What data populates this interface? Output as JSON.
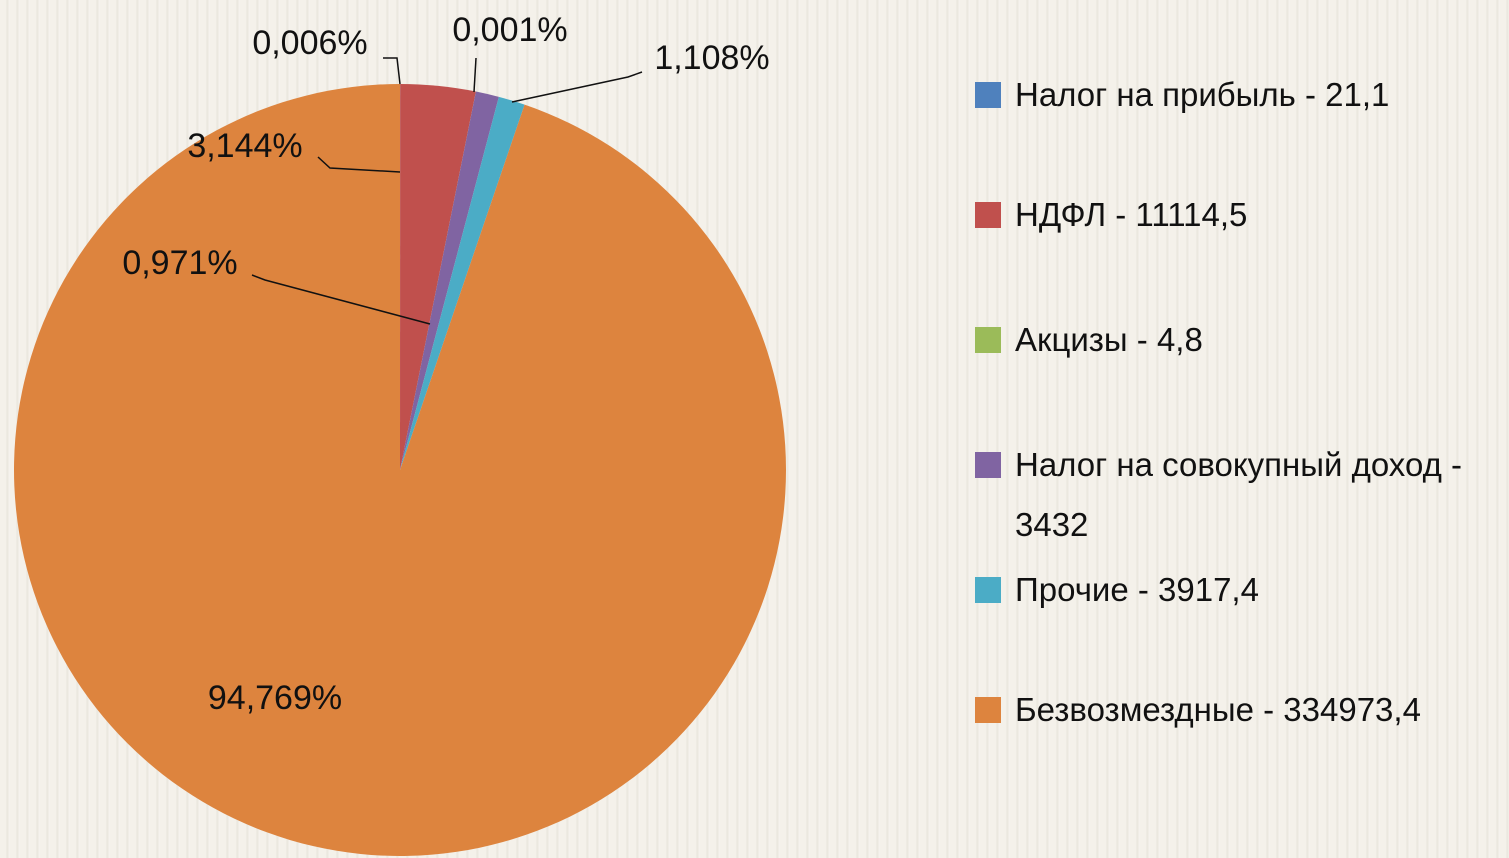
{
  "chart_data": {
    "type": "pie",
    "categories": [
      "Налог на прибыль - 21,1",
      "НДФЛ - 11114,5",
      "Акцизы - 4,8",
      "Налог на совокупный доход - 3432",
      "Прочие - 3917,4",
      "Безвозмездные - 334973,4"
    ],
    "values": [
      0.006,
      3.144,
      0.001,
      0.971,
      1.108,
      94.769
    ],
    "value_labels": [
      "0,006%",
      "3,144%",
      "0,001%",
      "0,971%",
      "1,108%",
      "94,769%"
    ],
    "colors": [
      "#4f81bd",
      "#c0504d",
      "#9bbb59",
      "#8064a2",
      "#4bacc6",
      "#dd843e"
    ],
    "legend": "right"
  }
}
